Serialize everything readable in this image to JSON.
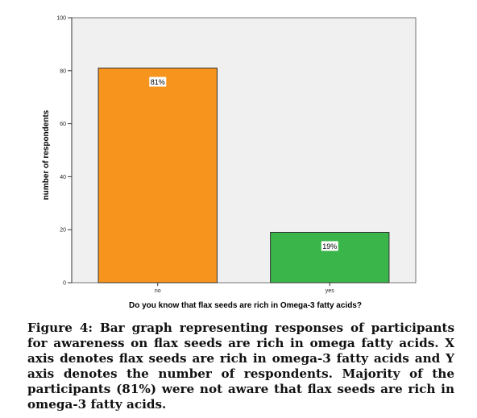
{
  "chart_data": {
    "type": "bar",
    "categories": [
      "no",
      "yes"
    ],
    "values": [
      81,
      19
    ],
    "data_labels": [
      "81%",
      "19%"
    ],
    "colors": [
      "#f7941d",
      "#3ab54a"
    ],
    "xlabel": "Do you know that flax seeds are rich in Omega-3 fatty acids?",
    "ylabel": "number of respondents",
    "ylim": [
      0,
      100
    ],
    "yticks": [
      "0",
      "20",
      "40",
      "60",
      "80",
      "100"
    ],
    "plot_background": "#f0f0f0",
    "grid": false
  },
  "caption": "Figure 4: Bar graph representing responses of participants for awareness on flax seeds are rich in omega fatty acids. X axis denotes flax seeds are rich in omega-3 fatty acids and Y axis denotes the number of respondents. Majority of the participants (81%) were not aware that flax seeds are rich in omega-3 fatty acids."
}
